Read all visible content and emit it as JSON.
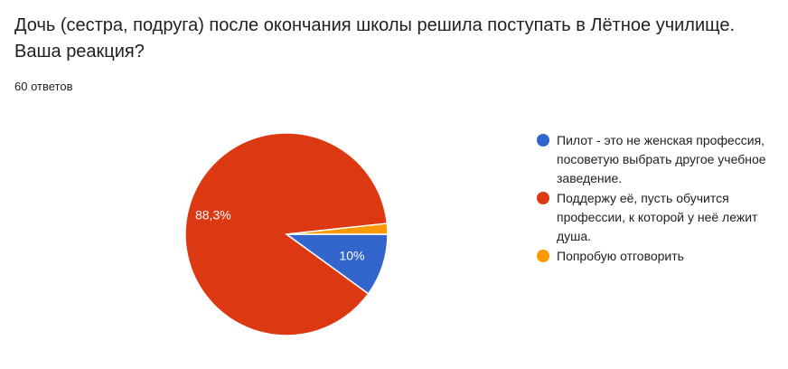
{
  "question": "Дочь (сестра, подруга) после окончания школы решила поступать в Лётное училище. Ваша реакция?",
  "responses_count": "60 ответов",
  "chart_data": {
    "type": "pie",
    "slices": [
      {
        "label": "Пилот - это не женская профессия, посоветую выбрать другое учебное заведение.",
        "value": 10,
        "display": "10%",
        "color": "#3366cc"
      },
      {
        "label": "Поддержу её, пусть обучится профессии, к которой у неё лежит душа.",
        "value": 88.3,
        "display": "88,3%",
        "color": "#dc3912"
      },
      {
        "label": "Попробую отговорить",
        "value": 1.7,
        "display": "",
        "color": "#ff9900"
      }
    ],
    "legend_position": "right"
  }
}
